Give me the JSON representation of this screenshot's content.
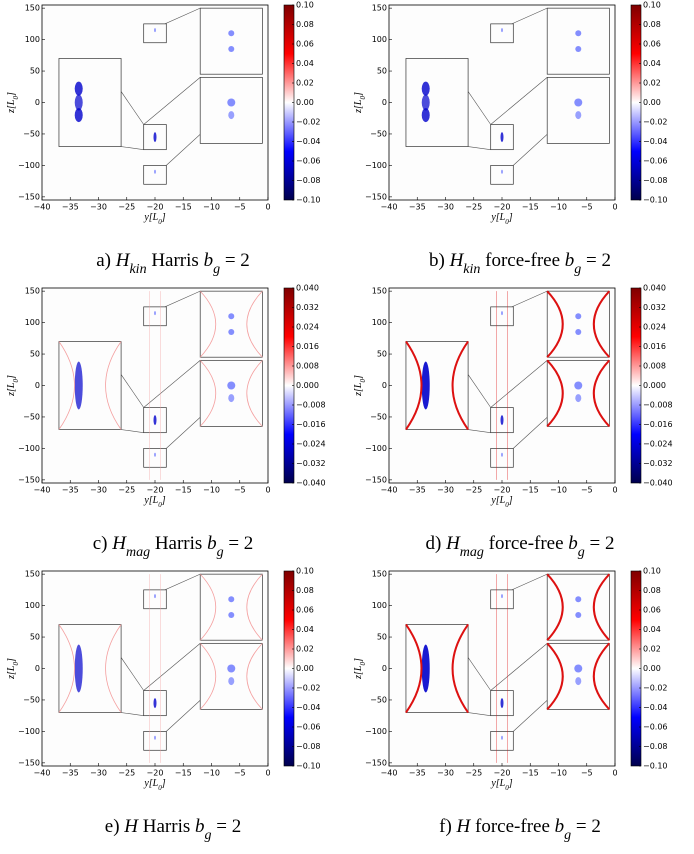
{
  "chart_data": [
    {
      "type": "heatmap",
      "caption": {
        "prefix": "a)",
        "var": "H",
        "sub": "kin",
        "name": "Harris",
        "bg": "b",
        "bgsub": "g",
        "eq": "= 2"
      },
      "xlabel": [
        "y[L",
        "0",
        "]"
      ],
      "ylabel": [
        "z[L",
        "0",
        "]"
      ],
      "xlim": [
        -40,
        0
      ],
      "ylim": [
        -155,
        155
      ],
      "xticks": [
        {
          "value": -40,
          "label": "−40"
        },
        {
          "value": -35,
          "label": "−35"
        },
        {
          "value": -30,
          "label": "−30"
        },
        {
          "value": -25,
          "label": "−25"
        },
        {
          "value": -20,
          "label": "−20"
        },
        {
          "value": -15,
          "label": "−15"
        },
        {
          "value": -10,
          "label": "−10"
        },
        {
          "value": -5,
          "label": "−5"
        },
        0
      ],
      "yticks": [
        {
          "value": -150,
          "label": "−150"
        },
        {
          "value": -100,
          "label": "−100"
        },
        {
          "value": -50,
          "label": "−50"
        },
        0,
        50,
        100,
        150
      ],
      "clim": [
        -0.1,
        0.1
      ],
      "cticks": [
        {
          "value": 0.1,
          "label": "0.10"
        },
        0.08,
        0.06,
        0.04,
        0.02,
        {
          "value": 0,
          "label": "0.00"
        },
        {
          "value": -0.02,
          "label": "−0.02"
        },
        {
          "value": -0.04,
          "label": "−0.04"
        },
        {
          "value": -0.06,
          "label": "−0.06"
        },
        {
          "value": -0.08,
          "label": "−0.08"
        },
        {
          "value": -0.1,
          "label": "−0.10"
        }
      ],
      "colormap": [
        "#00004c",
        "#0000ff",
        "#ffffff",
        "#ff0000",
        "#7f0000"
      ]
    },
    {
      "type": "heatmap",
      "caption": {
        "prefix": "b)",
        "var": "H",
        "sub": "kin",
        "name": "force-free",
        "bg": "b",
        "bgsub": "g",
        "eq": "= 2"
      },
      "xlabel": [
        "y[L",
        "0",
        "]"
      ],
      "ylabel": [
        "z[L",
        "0",
        "]"
      ],
      "xlim": [
        -40,
        0
      ],
      "ylim": [
        -155,
        155
      ],
      "xticks": [
        {
          "value": -40,
          "label": "−40"
        },
        {
          "value": -35,
          "label": "−35"
        },
        {
          "value": -30,
          "label": "−30"
        },
        {
          "value": -25,
          "label": "−25"
        },
        {
          "value": -20,
          "label": "−20"
        },
        {
          "value": -15,
          "label": "−15"
        },
        {
          "value": -10,
          "label": "−10"
        },
        {
          "value": -5,
          "label": "−5"
        },
        0
      ],
      "yticks": [
        {
          "value": -150,
          "label": "−150"
        },
        {
          "value": -100,
          "label": "−100"
        },
        {
          "value": -50,
          "label": "−50"
        },
        0,
        50,
        100,
        150
      ],
      "clim": [
        -0.1,
        0.1
      ],
      "cticks": [
        {
          "value": 0.1,
          "label": "0.10"
        },
        0.08,
        0.06,
        0.04,
        0.02,
        {
          "value": 0,
          "label": "0.00"
        },
        {
          "value": -0.02,
          "label": "−0.02"
        },
        {
          "value": -0.04,
          "label": "−0.04"
        },
        {
          "value": -0.06,
          "label": "−0.06"
        },
        {
          "value": -0.08,
          "label": "−0.08"
        },
        {
          "value": -0.1,
          "label": "−0.10"
        }
      ],
      "colormap": [
        "#00004c",
        "#0000ff",
        "#ffffff",
        "#ff0000",
        "#7f0000"
      ]
    },
    {
      "type": "heatmap",
      "caption": {
        "prefix": "c)",
        "var": "H",
        "sub": "mag",
        "name": "Harris",
        "bg": "b",
        "bgsub": "g",
        "eq": "= 2"
      },
      "xlabel": [
        "y[L",
        "0",
        "]"
      ],
      "ylabel": [
        "z[L",
        "0",
        "]"
      ],
      "xlim": [
        -40,
        0
      ],
      "ylim": [
        -155,
        155
      ],
      "xticks": [
        {
          "value": -40,
          "label": "−40"
        },
        {
          "value": -35,
          "label": "−35"
        },
        {
          "value": -30,
          "label": "−30"
        },
        {
          "value": -25,
          "label": "−25"
        },
        {
          "value": -20,
          "label": "−20"
        },
        {
          "value": -15,
          "label": "−15"
        },
        {
          "value": -10,
          "label": "−10"
        },
        {
          "value": -5,
          "label": "−5"
        },
        0
      ],
      "yticks": [
        {
          "value": -150,
          "label": "−150"
        },
        {
          "value": -100,
          "label": "−100"
        },
        {
          "value": -50,
          "label": "−50"
        },
        0,
        50,
        100,
        150
      ],
      "clim": [
        -0.04,
        0.04
      ],
      "cticks": [
        {
          "value": 0.04,
          "label": "0.040"
        },
        {
          "value": 0.032,
          "label": "0.032"
        },
        {
          "value": 0.024,
          "label": "0.024"
        },
        {
          "value": 0.016,
          "label": "0.016"
        },
        {
          "value": 0.008,
          "label": "0.008"
        },
        {
          "value": 0,
          "label": "0.000"
        },
        {
          "value": -0.008,
          "label": "−0.008"
        },
        {
          "value": -0.016,
          "label": "−0.016"
        },
        {
          "value": -0.024,
          "label": "−0.024"
        },
        {
          "value": -0.032,
          "label": "−0.032"
        },
        {
          "value": -0.04,
          "label": "−0.040"
        }
      ],
      "colormap": [
        "#00004c",
        "#0000ff",
        "#ffffff",
        "#ff0000",
        "#7f0000"
      ]
    },
    {
      "type": "heatmap",
      "caption": {
        "prefix": "d)",
        "var": "H",
        "sub": "mag",
        "name": "force-free",
        "bg": "b",
        "bgsub": "g",
        "eq": "= 2"
      },
      "xlabel": [
        "y[L",
        "0",
        "]"
      ],
      "ylabel": [
        "z[L",
        "0",
        "]"
      ],
      "xlim": [
        -40,
        0
      ],
      "ylim": [
        -155,
        155
      ],
      "xticks": [
        {
          "value": -40,
          "label": "−40"
        },
        {
          "value": -35,
          "label": "−35"
        },
        {
          "value": -30,
          "label": "−30"
        },
        {
          "value": -25,
          "label": "−25"
        },
        {
          "value": -20,
          "label": "−20"
        },
        {
          "value": -15,
          "label": "−15"
        },
        {
          "value": -10,
          "label": "−10"
        },
        {
          "value": -5,
          "label": "−5"
        },
        0
      ],
      "yticks": [
        {
          "value": -150,
          "label": "−150"
        },
        {
          "value": -100,
          "label": "−100"
        },
        {
          "value": -50,
          "label": "−50"
        },
        0,
        50,
        100,
        150
      ],
      "clim": [
        -0.04,
        0.04
      ],
      "cticks": [
        {
          "value": 0.04,
          "label": "0.040"
        },
        {
          "value": 0.032,
          "label": "0.032"
        },
        {
          "value": 0.024,
          "label": "0.024"
        },
        {
          "value": 0.016,
          "label": "0.016"
        },
        {
          "value": 0.008,
          "label": "0.008"
        },
        {
          "value": 0,
          "label": "0.000"
        },
        {
          "value": -0.008,
          "label": "−0.008"
        },
        {
          "value": -0.016,
          "label": "−0.016"
        },
        {
          "value": -0.024,
          "label": "−0.024"
        },
        {
          "value": -0.032,
          "label": "−0.032"
        },
        {
          "value": -0.04,
          "label": "−0.040"
        }
      ],
      "colormap": [
        "#00004c",
        "#0000ff",
        "#ffffff",
        "#ff0000",
        "#7f0000"
      ]
    },
    {
      "type": "heatmap",
      "caption": {
        "prefix": "e)",
        "var": "H",
        "name": "Harris",
        "bg": "b",
        "bgsub": "g",
        "eq": "= 2"
      },
      "xlabel": [
        "y[L",
        "0",
        "]"
      ],
      "ylabel": [
        "z[L",
        "0",
        "]"
      ],
      "xlim": [
        -40,
        0
      ],
      "ylim": [
        -155,
        155
      ],
      "xticks": [
        {
          "value": -40,
          "label": "−40"
        },
        {
          "value": -35,
          "label": "−35"
        },
        {
          "value": -30,
          "label": "−30"
        },
        {
          "value": -25,
          "label": "−25"
        },
        {
          "value": -20,
          "label": "−20"
        },
        {
          "value": -15,
          "label": "−15"
        },
        {
          "value": -10,
          "label": "−10"
        },
        {
          "value": -5,
          "label": "−5"
        },
        0
      ],
      "yticks": [
        {
          "value": -150,
          "label": "−150"
        },
        {
          "value": -100,
          "label": "−100"
        },
        {
          "value": -50,
          "label": "−50"
        },
        0,
        50,
        100,
        150
      ],
      "clim": [
        -0.1,
        0.1
      ],
      "cticks": [
        {
          "value": 0.1,
          "label": "0.10"
        },
        0.08,
        0.06,
        0.04,
        0.02,
        {
          "value": 0,
          "label": "0.00"
        },
        {
          "value": -0.02,
          "label": "−0.02"
        },
        {
          "value": -0.04,
          "label": "−0.04"
        },
        {
          "value": -0.06,
          "label": "−0.06"
        },
        {
          "value": -0.08,
          "label": "−0.08"
        },
        {
          "value": -0.1,
          "label": "−0.10"
        }
      ],
      "colormap": [
        "#00004c",
        "#0000ff",
        "#ffffff",
        "#ff0000",
        "#7f0000"
      ]
    },
    {
      "type": "heatmap",
      "caption": {
        "prefix": "f)",
        "var": "H",
        "name": "force-free",
        "bg": "b",
        "bgsub": "g",
        "eq": "= 2"
      },
      "xlabel": [
        "y[L",
        "0",
        "]"
      ],
      "ylabel": [
        "z[L",
        "0",
        "]"
      ],
      "xlim": [
        -40,
        0
      ],
      "ylim": [
        -155,
        155
      ],
      "xticks": [
        {
          "value": -40,
          "label": "−40"
        },
        {
          "value": -35,
          "label": "−35"
        },
        {
          "value": -30,
          "label": "−30"
        },
        {
          "value": -25,
          "label": "−25"
        },
        {
          "value": -20,
          "label": "−20"
        },
        {
          "value": -15,
          "label": "−15"
        },
        {
          "value": -10,
          "label": "−10"
        },
        {
          "value": -5,
          "label": "−5"
        },
        0
      ],
      "yticks": [
        {
          "value": -150,
          "label": "−150"
        },
        {
          "value": -100,
          "label": "−100"
        },
        {
          "value": -50,
          "label": "−50"
        },
        0,
        50,
        100,
        150
      ],
      "clim": [
        -0.1,
        0.1
      ],
      "cticks": [
        {
          "value": 0.1,
          "label": "0.10"
        },
        0.08,
        0.06,
        0.04,
        0.02,
        {
          "value": 0,
          "label": "0.00"
        },
        {
          "value": -0.02,
          "label": "−0.02"
        },
        {
          "value": -0.04,
          "label": "−0.04"
        },
        {
          "value": -0.06,
          "label": "−0.06"
        },
        {
          "value": -0.08,
          "label": "−0.08"
        },
        {
          "value": -0.1,
          "label": "−0.10"
        }
      ],
      "colormap": [
        "#00004c",
        "#0000ff",
        "#ffffff",
        "#ff0000",
        "#7f0000"
      ]
    }
  ]
}
